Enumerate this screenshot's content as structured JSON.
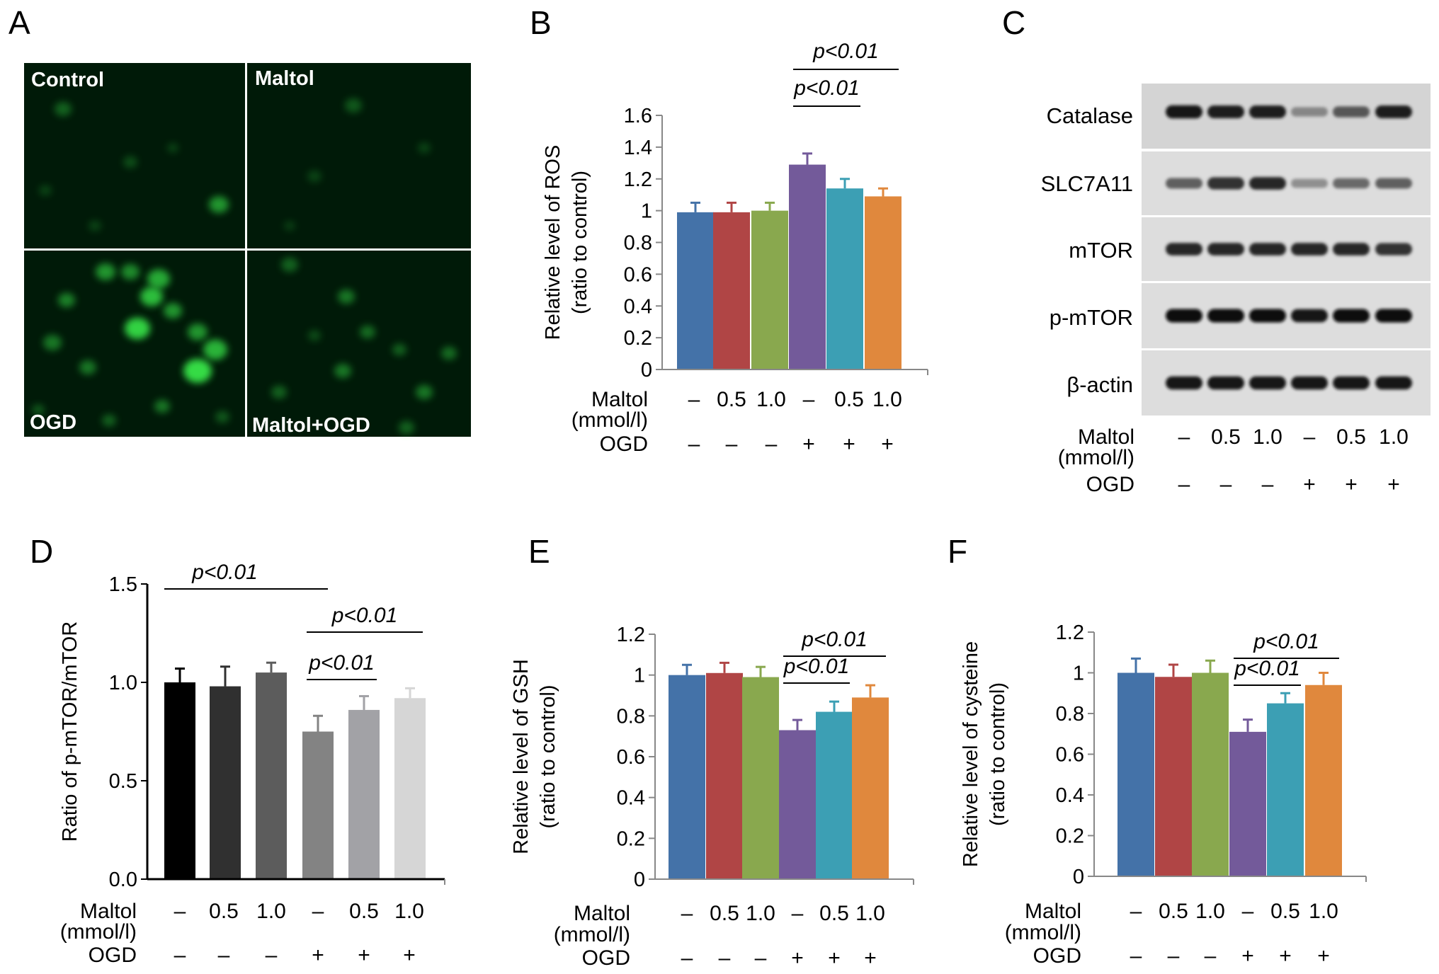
{
  "panel_letters": [
    "A",
    "B",
    "C",
    "D",
    "E",
    "F"
  ],
  "micrograph": {
    "labels": [
      "Control",
      "Maltol",
      "OGD",
      "Maltol+OGD"
    ],
    "tile_color": "#001a08",
    "cell_color": "#39e64a"
  },
  "conditions": {
    "maltol_label": "Maltol",
    "maltol_unit": "(mmol/l)",
    "ogd_label": "OGD",
    "maltol_values": [
      "–",
      "0.5",
      "1.0",
      "–",
      "0.5",
      "1.0"
    ],
    "ogd_values": [
      "–",
      "–",
      "–",
      "+",
      "+",
      "+"
    ]
  },
  "colors": {
    "color_bars": [
      "#4472a8",
      "#b04545",
      "#89a84e",
      "#735a9a",
      "#3c9fb4",
      "#e0883d"
    ],
    "gray_bars": [
      "#000000",
      "#303030",
      "#5c5c5c",
      "#838383",
      "#a2a2a6",
      "#d6d6d6"
    ]
  },
  "western_blot": {
    "labels": [
      "Catalase",
      "SLC7A11",
      "mTOR",
      "p-mTOR",
      "β-actin"
    ],
    "band_intensity": [
      [
        0.95,
        0.9,
        0.9,
        0.35,
        0.6,
        0.9
      ],
      [
        0.55,
        0.8,
        0.85,
        0.3,
        0.5,
        0.55
      ],
      [
        0.85,
        0.85,
        0.85,
        0.85,
        0.85,
        0.8
      ],
      [
        1.0,
        1.0,
        1.0,
        0.95,
        1.0,
        1.0
      ],
      [
        0.95,
        0.95,
        0.95,
        0.95,
        0.95,
        0.95
      ]
    ]
  },
  "chart_data": [
    {
      "panel": "B",
      "type": "bar",
      "categories": [
        "1",
        "2",
        "3",
        "4",
        "5",
        "6"
      ],
      "values": [
        0.99,
        0.99,
        1.0,
        1.29,
        1.14,
        1.09
      ],
      "errors": [
        0.06,
        0.06,
        0.05,
        0.07,
        0.06,
        0.05
      ],
      "ylabel_lines": [
        "Relative level of ROS",
        "(ratio to control)"
      ],
      "ylim": [
        0,
        1.6
      ],
      "yticks": [
        "0",
        "0.2",
        "0.4",
        "0.6",
        "0.8",
        "1",
        "1.2",
        "1.4",
        "1.6"
      ],
      "palette": "color",
      "annotations": [
        {
          "label": "p<0.01",
          "from": 3,
          "to": 4
        },
        {
          "label": "p<0.01",
          "from": 3,
          "to": 5
        }
      ]
    },
    {
      "panel": "D",
      "type": "bar",
      "categories": [
        "1",
        "2",
        "3",
        "4",
        "5",
        "6"
      ],
      "values": [
        1.0,
        0.98,
        1.05,
        0.75,
        0.86,
        0.92
      ],
      "errors": [
        0.07,
        0.1,
        0.05,
        0.08,
        0.07,
        0.05
      ],
      "ylabel_lines": [
        "Ratio of p-mTOR/mTOR"
      ],
      "ylim": [
        0,
        1.5
      ],
      "yticks": [
        "0.0",
        "0.5",
        "1.0",
        "1.5"
      ],
      "palette": "gray",
      "annotations": [
        {
          "label": "p<0.01",
          "from": 0,
          "to": 3
        },
        {
          "label": "p<0.01",
          "from": 3,
          "to": 4
        },
        {
          "label": "p<0.01",
          "from": 3,
          "to": 5
        }
      ]
    },
    {
      "panel": "E",
      "type": "bar",
      "categories": [
        "1",
        "2",
        "3",
        "4",
        "5",
        "6"
      ],
      "values": [
        1.0,
        1.01,
        0.99,
        0.73,
        0.82,
        0.89
      ],
      "errors": [
        0.05,
        0.05,
        0.05,
        0.05,
        0.05,
        0.06
      ],
      "ylabel_lines": [
        "Relative level of GSH",
        "(ratio to control)"
      ],
      "ylim": [
        0,
        1.2
      ],
      "yticks": [
        "0",
        "0.2",
        "0.4",
        "0.6",
        "0.8",
        "1",
        "1.2"
      ],
      "palette": "color",
      "annotations": [
        {
          "label": "p<0.01",
          "from": 3,
          "to": 4
        },
        {
          "label": "p<0.01",
          "from": 3,
          "to": 5
        }
      ]
    },
    {
      "panel": "F",
      "type": "bar",
      "categories": [
        "1",
        "2",
        "3",
        "4",
        "5",
        "6"
      ],
      "values": [
        1.0,
        0.98,
        1.0,
        0.71,
        0.85,
        0.94
      ],
      "errors": [
        0.07,
        0.06,
        0.06,
        0.06,
        0.05,
        0.06
      ],
      "ylabel_lines": [
        "Relative level of cysteine",
        "(ratio to control)"
      ],
      "ylim": [
        0,
        1.2
      ],
      "yticks": [
        "0",
        "0.2",
        "0.4",
        "0.6",
        "0.8",
        "1",
        "1.2"
      ],
      "palette": "color",
      "annotations": [
        {
          "label": "p<0.01",
          "from": 3,
          "to": 4
        },
        {
          "label": "p<0.01",
          "from": 3,
          "to": 5
        }
      ]
    }
  ]
}
